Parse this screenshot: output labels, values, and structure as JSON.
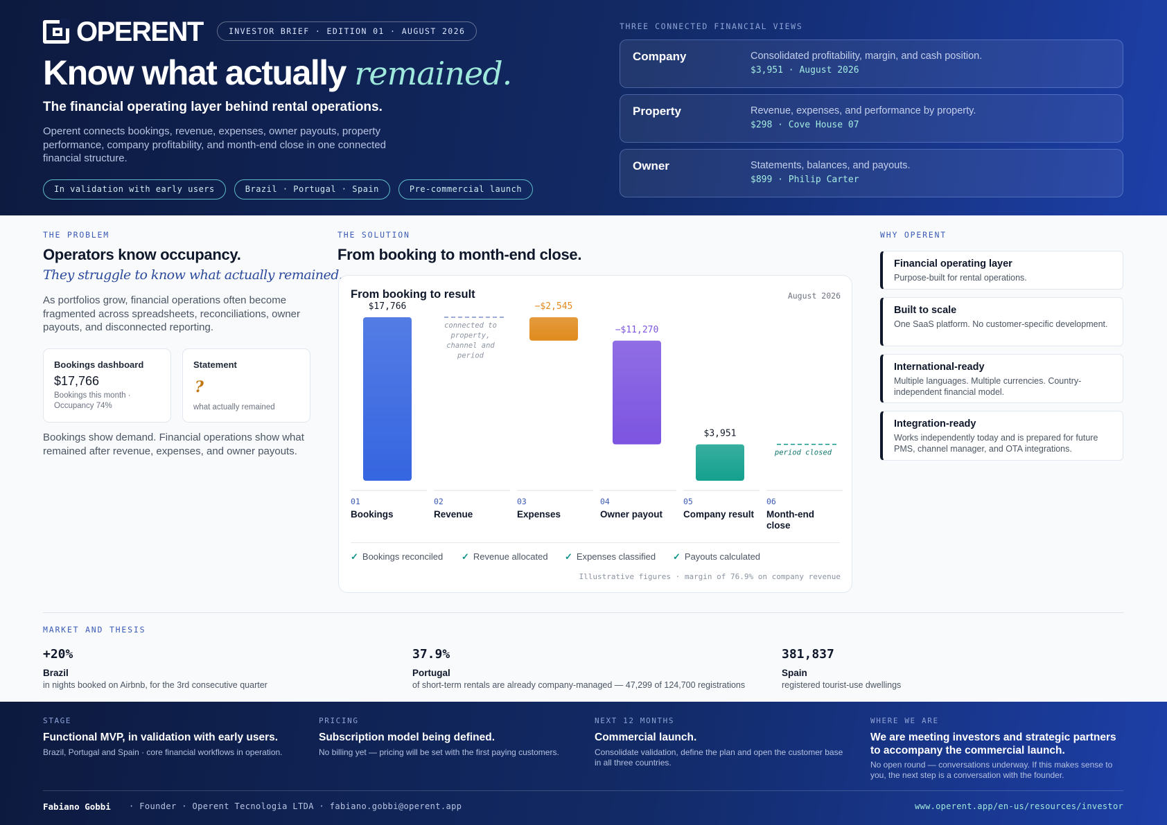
{
  "brand": {
    "name": "OPERENT",
    "tag": "INVESTOR BRIEF · EDITION 01 · AUGUST 2026"
  },
  "hero": {
    "headline": "Know what actually",
    "headline_accent": "remained.",
    "subheadline": "The financial operating layer behind rental operations.",
    "lead": "Operent connects bookings, revenue, expenses, owner payouts, property performance, company profitability, and month-end close in one connected financial structure.",
    "pills": [
      "In validation with early users",
      "Brazil · Portugal · Spain",
      "Pre-commercial launch"
    ]
  },
  "views": {
    "label": "THREE CONNECTED FINANCIAL VIEWS",
    "items": [
      {
        "name": "Company",
        "desc": "Consolidated profitability, margin, and cash position.",
        "value": "$3,951 · August 2026"
      },
      {
        "name": "Property",
        "desc": "Revenue, expenses, and performance by property.",
        "value": "$298 · Cove House 07"
      },
      {
        "name": "Owner",
        "desc": "Statements, balances, and payouts.",
        "value": "$899 · Philip Carter"
      }
    ]
  },
  "problem": {
    "label": "THE PROBLEM",
    "title": "Operators know occupancy.",
    "subtitle": "They struggle to know what actually remained.",
    "text": "As portfolios grow, financial operations often become fragmented across spreadsheets, reconciliations, owner payouts, and disconnected reporting.",
    "card1": {
      "title": "Bookings dashboard",
      "value": "$17,766",
      "sub": "Bookings this month · Occupancy 74%"
    },
    "card2": {
      "title": "Statement",
      "value": "?",
      "sub": "what actually remained"
    },
    "footer": "Bookings show demand. Financial operations show what remained after revenue, expenses, and owner payouts."
  },
  "solution": {
    "label": "THE SOLUTION",
    "title": "From booking to month-end close.",
    "chart_title": "From booking to result",
    "chart_date": "August 2026",
    "checks": [
      "Bookings reconciled",
      "Revenue allocated",
      "Expenses classified",
      "Payouts calculated"
    ],
    "footnote": "Illustrative figures · margin of 76.9% on company revenue"
  },
  "chart_data": {
    "type": "bar",
    "title": "From booking to result",
    "categories": [
      "Bookings",
      "Revenue",
      "Expenses",
      "Owner payout",
      "Company result",
      "Month-end close"
    ],
    "steps": [
      "01",
      "02",
      "03",
      "04",
      "05",
      "06"
    ],
    "values": [
      17766,
      null,
      -2545,
      -11270,
      3951,
      null
    ],
    "value_labels": [
      "$17,766",
      "",
      "−$2,545",
      "−$11,270",
      "$3,951",
      ""
    ],
    "notes": [
      "",
      "connected to property, channel and period",
      "",
      "",
      "",
      "period closed"
    ],
    "colors": [
      "#3565e0",
      "",
      "#e08a1c",
      "#7c54e0",
      "#14a08e",
      ""
    ]
  },
  "why": {
    "label": "WHY OPERENT",
    "items": [
      {
        "title": "Financial operating layer",
        "desc": "Purpose-built for rental operations.",
        "color": "#2f5bd0"
      },
      {
        "title": "Built to scale",
        "desc": "One SaaS platform. No customer-specific development.",
        "color": "#0f9488"
      },
      {
        "title": "International-ready",
        "desc": "Multiple languages. Multiple currencies. Country-independent financial model.",
        "color": "#e08a1c"
      },
      {
        "title": "Integration-ready",
        "desc": "Works independently today and is prepared for future PMS, channel manager, and OTA integrations.",
        "color": "#6d4bd8"
      }
    ]
  },
  "market": {
    "label": "MARKET AND THESIS",
    "stats": [
      {
        "value": "+20%",
        "country": "Brazil",
        "desc": "in nights booked on Airbnb, for the 3rd consecutive quarter"
      },
      {
        "value": "37.9%",
        "country": "Portugal",
        "desc": "of short-term rentals are already company-managed — 47,299 of 124,700 registrations"
      },
      {
        "value": "381,837",
        "country": "Spain",
        "desc": "registered tourist-use dwellings"
      }
    ]
  },
  "footer": {
    "cols": [
      {
        "label": "STAGE",
        "title": "Functional MVP, in validation with early users.",
        "desc": "Brazil, Portugal and Spain · core financial workflows in operation."
      },
      {
        "label": "PRICING",
        "title": "Subscription model being defined.",
        "desc": "No billing yet — pricing will be set with the first paying customers."
      },
      {
        "label": "NEXT 12 MONTHS",
        "title": "Commercial launch.",
        "desc": "Consolidate validation, define the plan and open the customer base in all three countries."
      },
      {
        "label": "WHERE WE ARE",
        "title": "We are meeting investors and strategic partners to accompany the commercial launch.",
        "desc": "No open round — conversations underway. If this makes sense to you, the next step is a conversation with the founder."
      }
    ],
    "name": "Fabiano Gobbi",
    "meta": "· Founder · Operent Tecnologia LTDA · fabiano.gobbi@operent.app",
    "url": "www.operent.app/en-us/resources/investor"
  }
}
